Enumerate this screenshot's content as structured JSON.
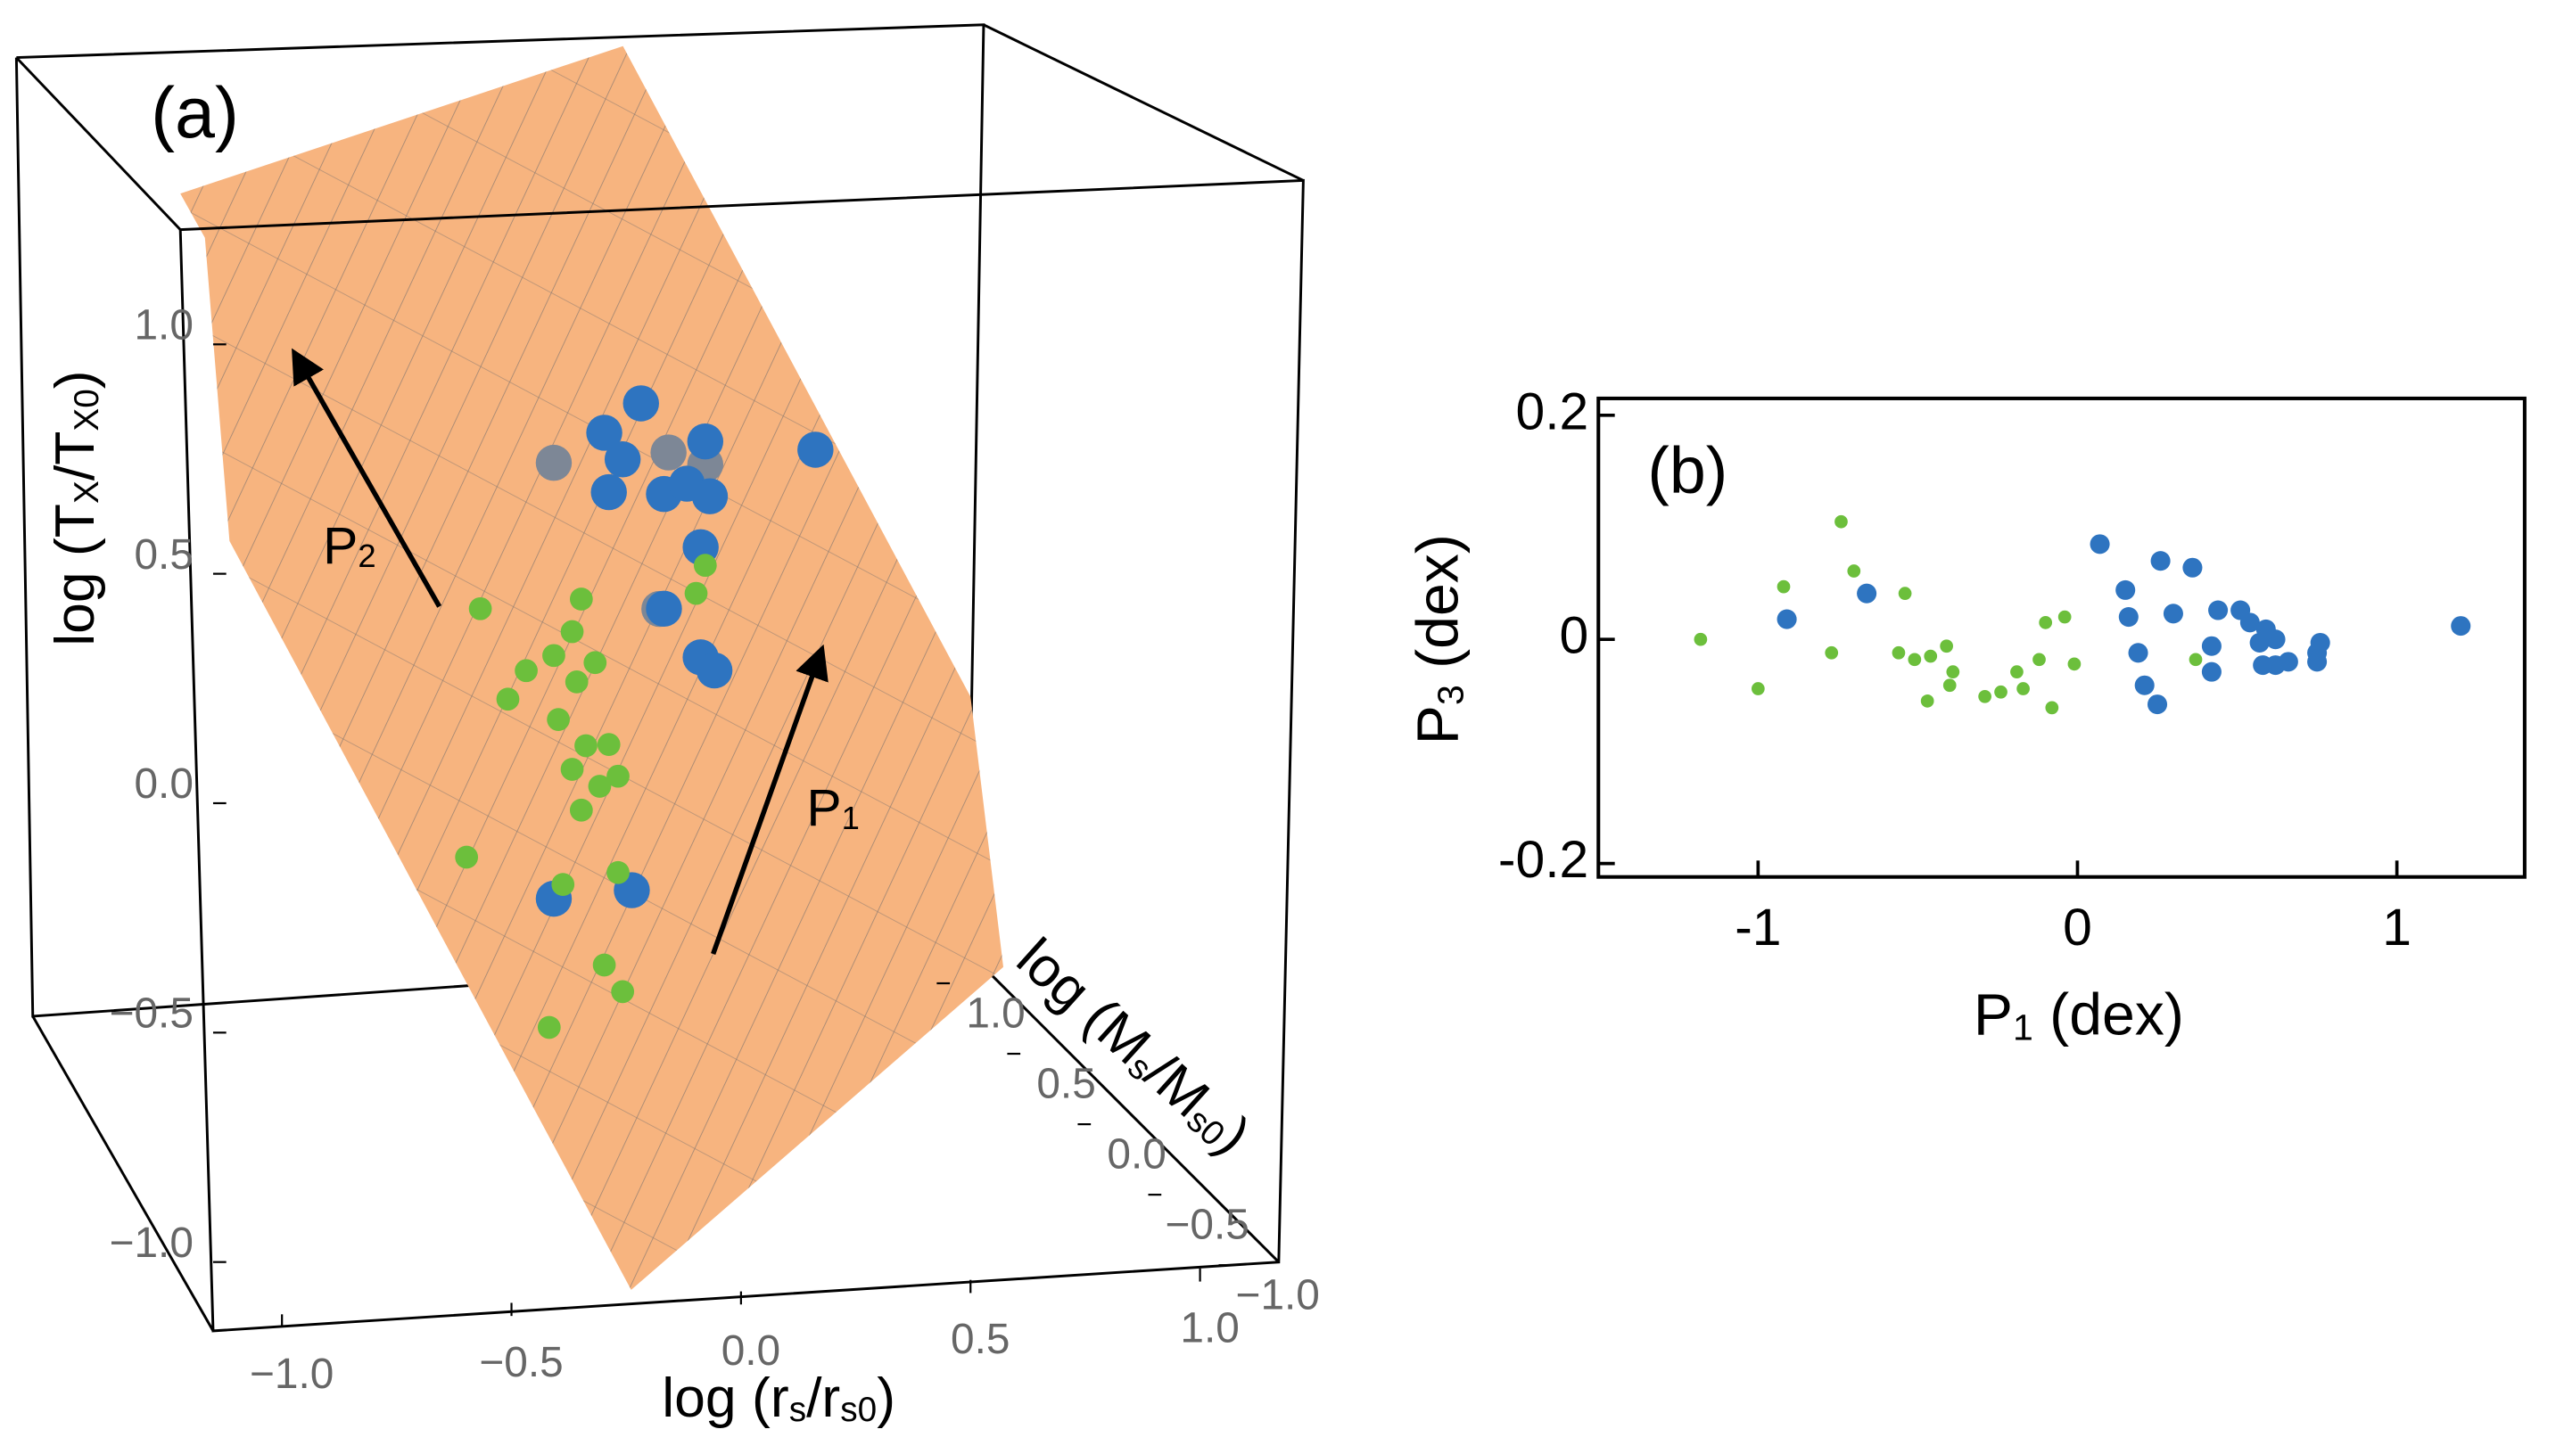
{
  "chart_data": [
    {
      "type": "scatter3d",
      "panel_label": "(a)",
      "xlabel": [
        "log (r",
        "s",
        "/r",
        "s0",
        ")"
      ],
      "ylabel": [
        "log (M",
        "s",
        "/M",
        "s0",
        ")"
      ],
      "zlabel": [
        "log (T",
        "X",
        "/T",
        "X0",
        ")"
      ],
      "arrow_labels": [
        [
          "P",
          "1"
        ],
        [
          "P",
          "2"
        ]
      ],
      "xlim": [
        -1.15,
        1.1
      ],
      "ylim": [
        -1.1,
        1.1
      ],
      "zlim": [
        -1.15,
        1.25
      ],
      "xticks": [
        {
          "value": -1,
          "label": "−1.0"
        },
        {
          "value": -0.5,
          "label": "−0.5"
        },
        {
          "value": 0,
          "label": "0.0"
        },
        {
          "value": 0.5,
          "label": "0.5"
        },
        {
          "value": 1,
          "label": "1.0"
        }
      ],
      "yticks": [
        {
          "value": -1,
          "label": "−1.0"
        },
        {
          "value": -0.5,
          "label": "−0.5"
        },
        {
          "value": 0,
          "label": "0.0"
        },
        {
          "value": 0.5,
          "label": "0.5"
        },
        {
          "value": 1,
          "label": "1.0"
        }
      ],
      "zticks": [
        {
          "value": -1,
          "label": "−1.0"
        },
        {
          "value": -0.5,
          "label": "−0.5"
        },
        {
          "value": 0,
          "label": "0.0"
        },
        {
          "value": 0.5,
          "label": "0.5"
        },
        {
          "value": 1,
          "label": "1.0"
        }
      ],
      "plane_color": "#f7b47f",
      "series": [
        {
          "color": "#7d8796",
          "x": [
            -0.07,
            0.18,
            0.26,
            0.16
          ],
          "y": [
            0,
            0,
            0,
            0
          ],
          "z": [
            0.35,
            0.36,
            0.33,
            0.02
          ]
        },
        {
          "color": "#2e74c0",
          "x": [
            0.12,
            0.04,
            0.08,
            0.26,
            0.17,
            0.22,
            0.05,
            0.27,
            0.5,
            0.25,
            0.17,
            0.25,
            0.28,
            -0.07,
            0.1
          ],
          "y": [
            0,
            0,
            0,
            0,
            0,
            0,
            0,
            0,
            0,
            0,
            0,
            0,
            0,
            0,
            0
          ],
          "z": [
            0.47,
            0.41,
            0.35,
            0.38,
            0.27,
            0.29,
            0.28,
            0.26,
            0.35,
            0.15,
            0.02,
            -0.09,
            -0.12,
            -0.6,
            -0.59
          ]
        },
        {
          "color": "#6cbf3c",
          "x": [
            -0.23,
            -0.01,
            -0.03,
            -0.07,
            0.02,
            -0.13,
            -0.17,
            -0.02,
            -0.06,
            0.0,
            0.05,
            -0.03,
            0.03,
            0.07,
            -0.01,
            0.26,
            0.24,
            -0.26,
            -0.05,
            0.07,
            0.04,
            0.08,
            -0.08
          ],
          "y": [
            0,
            0,
            0,
            0,
            0,
            0,
            0,
            0,
            0,
            0,
            0,
            0,
            0,
            0,
            0,
            0,
            0,
            0,
            0,
            0,
            0,
            0,
            0
          ],
          "z": [
            0.04,
            0.05,
            -0.02,
            -0.07,
            -0.09,
            -0.1,
            -0.16,
            -0.13,
            -0.21,
            -0.27,
            -0.27,
            -0.32,
            -0.36,
            -0.34,
            -0.41,
            0.11,
            0.05,
            -0.5,
            -0.57,
            -0.55,
            -0.75,
            -0.81,
            -0.88
          ]
        }
      ]
    },
    {
      "type": "scatter",
      "panel_label": "(b)",
      "xlabel": [
        "P",
        "1",
        " (dex)"
      ],
      "ylabel": [
        "P",
        "3",
        " (dex)"
      ],
      "xlim": [
        -1.5,
        1.4
      ],
      "ylim": [
        -0.212,
        0.215
      ],
      "xticks": [
        -1,
        0,
        1
      ],
      "yticks": [
        {
          "value": -0.2,
          "label": "-0.2"
        },
        0,
        0.2
      ],
      "series": [
        {
          "color": "#6cbf3c",
          "x": [
            -1.18,
            -1.0,
            -0.92,
            -0.9,
            -0.74,
            -0.7,
            -0.77,
            -0.54,
            -0.56,
            -0.51,
            -0.46,
            -0.41,
            -0.47,
            -0.4,
            -0.39,
            -0.29,
            -0.24,
            -0.19,
            -0.17,
            -0.12,
            -0.08,
            -0.1,
            -0.04,
            -0.01,
            0.37
          ],
          "y": [
            0.0,
            -0.044,
            0.047,
            0.018,
            0.105,
            0.061,
            -0.012,
            0.041,
            -0.012,
            -0.018,
            -0.015,
            -0.006,
            -0.055,
            -0.041,
            -0.029,
            -0.051,
            -0.047,
            -0.029,
            -0.044,
            -0.018,
            -0.061,
            0.015,
            0.02,
            -0.022,
            -0.018
          ]
        },
        {
          "color": "#2e74c0",
          "x": [
            -0.91,
            -0.66,
            0.07,
            0.15,
            0.16,
            0.26,
            0.3,
            0.36,
            0.19,
            0.21,
            0.25,
            0.42,
            0.44,
            0.42,
            0.51,
            0.54,
            0.57,
            0.58,
            0.59,
            0.62,
            0.66,
            0.62,
            0.75,
            0.75,
            0.76,
            1.2
          ],
          "y": [
            0.018,
            0.041,
            0.085,
            0.044,
            0.02,
            0.07,
            0.023,
            0.064,
            -0.012,
            -0.041,
            -0.058,
            -0.006,
            0.026,
            -0.029,
            0.026,
            0.015,
            -0.003,
            -0.023,
            0.009,
            -0.023,
            -0.02,
            0.0,
            -0.012,
            -0.02,
            -0.003,
            0.012
          ]
        }
      ]
    }
  ]
}
